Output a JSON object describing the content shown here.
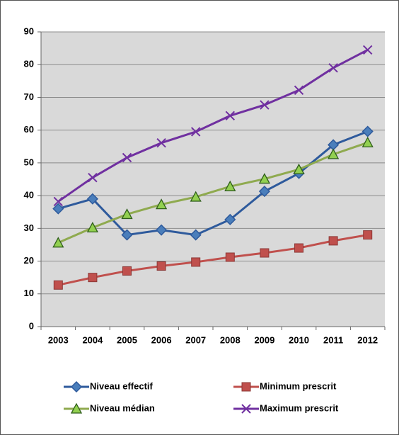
{
  "chart_data": {
    "type": "line",
    "categories": [
      "2003",
      "2004",
      "2005",
      "2006",
      "2007",
      "2008",
      "2009",
      "2010",
      "2011",
      "2012"
    ],
    "series": [
      {
        "name": "Niveau effectif",
        "color": "#2e5a9c",
        "marker": "diamond",
        "values": [
          36,
          39,
          28,
          29.5,
          28,
          32.7,
          41.3,
          46.8,
          55.5,
          59.6
        ]
      },
      {
        "name": "Minimum prescrit",
        "color": "#c0504d",
        "marker": "square",
        "values": [
          12.7,
          15,
          17,
          18.5,
          19.7,
          21.2,
          22.5,
          24,
          26.2,
          28
        ]
      },
      {
        "name": "Niveau médian",
        "color": "#8faa4f",
        "marker": "triangle",
        "values": [
          25.6,
          30.2,
          34.3,
          37.3,
          39.6,
          42.8,
          45.1,
          48,
          52.6,
          56.2
        ]
      },
      {
        "name": "Maximum prescrit",
        "color": "#7030a0",
        "marker": "cross",
        "values": [
          38.2,
          45.5,
          51.6,
          56.1,
          59.5,
          64.4,
          67.7,
          72.2,
          79,
          84.5
        ]
      }
    ],
    "ylim": [
      0,
      90
    ],
    "yticks": [
      0,
      10,
      20,
      30,
      40,
      50,
      60,
      70,
      80,
      90
    ],
    "grid": true
  }
}
